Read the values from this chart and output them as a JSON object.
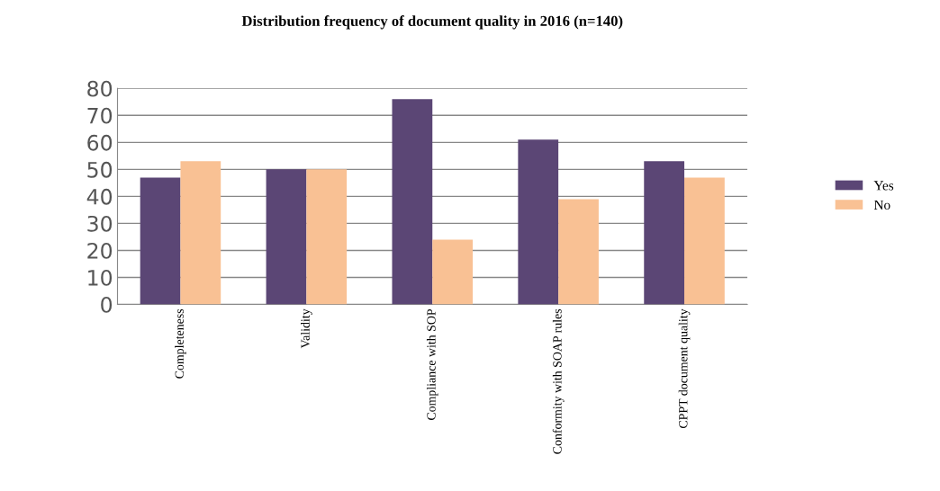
{
  "chart_data": {
    "type": "bar",
    "title": "Distribution frequency of document quality in 2016 (n=140)",
    "categories": [
      "Completeness",
      "Validity",
      "Compliance with SOP",
      "Conformity with SOAP rules",
      "CPPT document quality"
    ],
    "series": [
      {
        "name": "Yes",
        "color": "#5b4675",
        "values": [
          47,
          50,
          76,
          61,
          53
        ]
      },
      {
        "name": "No",
        "color": "#f9c194",
        "values": [
          53,
          50,
          24,
          39,
          47
        ]
      }
    ],
    "ylim": [
      0,
      80
    ],
    "yticks": [
      0,
      10,
      20,
      30,
      40,
      50,
      60,
      70,
      80
    ],
    "grid": "y",
    "legend": "right"
  }
}
